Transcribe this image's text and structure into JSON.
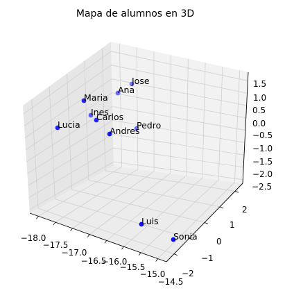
{
  "chart_data": {
    "type": "scatter",
    "title": "Mapa de alumnos en 3D",
    "xlabel": "",
    "ylabel": "",
    "zlabel": "",
    "grid": true,
    "marker_color": "#0000ff",
    "x_ticks": [
      "−18.0",
      "−17.5",
      "−17.0",
      "−16.5",
      "−16.0",
      "−15.5",
      "−15.0",
      "−14.5"
    ],
    "y_ticks": [
      "−2",
      "−1",
      "0",
      "1",
      "2"
    ],
    "z_ticks": [
      "−2.5",
      "−2.0",
      "−1.5",
      "−1.0",
      "−0.5",
      "0.0",
      "0.5",
      "1.0",
      "1.5"
    ],
    "points": [
      {
        "label": "Jose",
        "alpha": 0.5
      },
      {
        "label": "Ana",
        "alpha": 0.55
      },
      {
        "label": "Maria",
        "alpha": 0.85
      },
      {
        "label": "Ines",
        "alpha": 0.6
      },
      {
        "label": "Carlos",
        "alpha": 0.85
      },
      {
        "label": "Lucia",
        "alpha": 0.85
      },
      {
        "label": "Pedro",
        "alpha": 0.55
      },
      {
        "label": "Andres",
        "alpha": 0.9
      },
      {
        "label": "Luis",
        "alpha": 0.95
      },
      {
        "label": "Sonia",
        "alpha": 0.95
      }
    ]
  }
}
